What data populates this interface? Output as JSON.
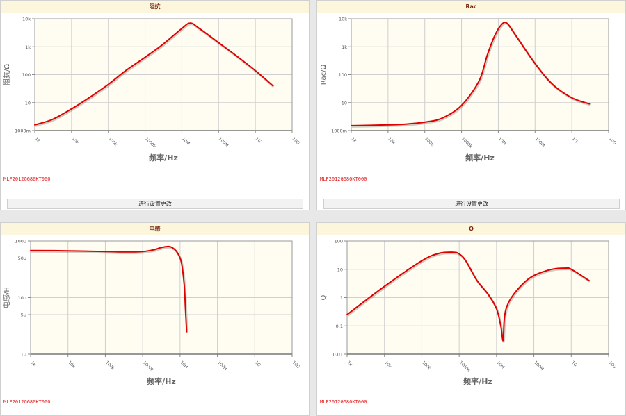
{
  "colors": {
    "series": "#e00000",
    "plot_bg": "#fffdf1",
    "header_bg": "#fbf6dc",
    "title": "#7a2b12",
    "part_label": "#e01818"
  },
  "panels": [
    {
      "title": "阻抗",
      "part_number": "MLF2012G680KT000",
      "button_label": "进行设置更改"
    },
    {
      "title": "Rac",
      "part_number": "MLF2012G680KT000",
      "button_label": "进行设置更改"
    },
    {
      "title": "电感",
      "part_number": "MLF2012G680KT000"
    },
    {
      "title": "Q",
      "part_number": "MLF2012G680KT000"
    }
  ],
  "chart_data": [
    {
      "type": "line",
      "title": "阻抗",
      "xlabel": "频率/Hz",
      "ylabel": "阻抗/Ω",
      "x_scale": "log",
      "y_scale": "log",
      "grid": true,
      "xlim": [
        1000,
        10000000000
      ],
      "ylim": [
        1,
        10000
      ],
      "x_tick_labels": [
        "1k",
        "10k",
        "100k",
        "1000k",
        "10M",
        "100M",
        "1G",
        "10G"
      ],
      "y_tick_labels": [
        "1000m",
        "10",
        "100",
        "1k",
        "10k"
      ],
      "series": [
        {
          "x": [
            1000,
            3000,
            10000,
            30000,
            100000,
            300000,
            1000000,
            3000000,
            10000000,
            17000000,
            30000000,
            100000000,
            300000000,
            1000000000,
            3000000000
          ],
          "y": [
            1.6,
            2.5,
            6,
            15,
            45,
            140,
            420,
            1200,
            4500,
            7000,
            4500,
            1400,
            480,
            140,
            40
          ]
        }
      ]
    },
    {
      "type": "line",
      "title": "Rac",
      "xlabel": "频率/Hz",
      "ylabel": "Rac/Ω",
      "x_scale": "log",
      "y_scale": "log",
      "grid": true,
      "xlim": [
        1000,
        10000000000
      ],
      "ylim": [
        1,
        10000
      ],
      "x_tick_labels": [
        "1k",
        "10k",
        "100k",
        "1000k",
        "10M",
        "100M",
        "1G",
        "10G"
      ],
      "y_tick_labels": [
        "1000m",
        "10",
        "100",
        "1k",
        "10k"
      ],
      "series": [
        {
          "x": [
            1000,
            10000,
            30000,
            100000,
            300000,
            1000000,
            3000000,
            5000000,
            8000000,
            12000000,
            17000000,
            30000000,
            100000000,
            300000000,
            1000000000,
            3000000000
          ],
          "y": [
            1.5,
            1.6,
            1.7,
            2,
            2.8,
            8,
            60,
            500,
            2500,
            6000,
            7000,
            2500,
            250,
            45,
            15,
            9
          ]
        }
      ]
    },
    {
      "type": "line",
      "title": "电感",
      "xlabel": "频率/Hz",
      "ylabel": "电感/H",
      "x_scale": "log",
      "y_scale": "log",
      "grid": true,
      "xlim": [
        1000,
        10000000000
      ],
      "ylim": [
        1,
        100
      ],
      "x_tick_labels": [
        "1k",
        "10k",
        "100k",
        "1000k",
        "10M",
        "100M",
        "1G",
        "10G"
      ],
      "y_tick_labels": [
        "1μ",
        "5μ",
        "10μ",
        "50μ",
        "100μ"
      ],
      "series": [
        {
          "x": [
            1000,
            10000,
            100000,
            300000,
            1000000,
            2000000,
            3000000,
            5000000,
            7000000,
            9000000,
            11000000,
            13000000,
            14000000,
            15000000
          ],
          "y": [
            68,
            67,
            65,
            64,
            65,
            70,
            76,
            80,
            72,
            58,
            40,
            16,
            6,
            2.5
          ]
        }
      ]
    },
    {
      "type": "line",
      "title": "Q",
      "xlabel": "频率/Hz",
      "ylabel": "Q",
      "x_scale": "log",
      "y_scale": "log",
      "grid": true,
      "xlim": [
        1000,
        10000000000
      ],
      "ylim": [
        0.01,
        100
      ],
      "x_tick_labels": [
        "1k",
        "10k",
        "100k",
        "1000k",
        "10M",
        "100M",
        "1G",
        "10G"
      ],
      "y_tick_labels": [
        "0.01",
        "0.1",
        "1",
        "10",
        "100"
      ],
      "series": [
        {
          "x": [
            1000,
            10000,
            100000,
            300000,
            700000,
            1000000,
            1500000,
            3000000,
            6000000,
            10000000,
            13000000,
            15000000,
            16000000,
            18000000,
            25000000,
            50000000,
            100000000,
            300000000,
            700000000,
            1000000000,
            3000000000
          ],
          "y": [
            0.25,
            2.5,
            20,
            37,
            40,
            35,
            20,
            4,
            1.3,
            0.4,
            0.1,
            0.03,
            0.15,
            0.4,
            1,
            3,
            6,
            10,
            11,
            10,
            4
          ]
        }
      ]
    }
  ]
}
